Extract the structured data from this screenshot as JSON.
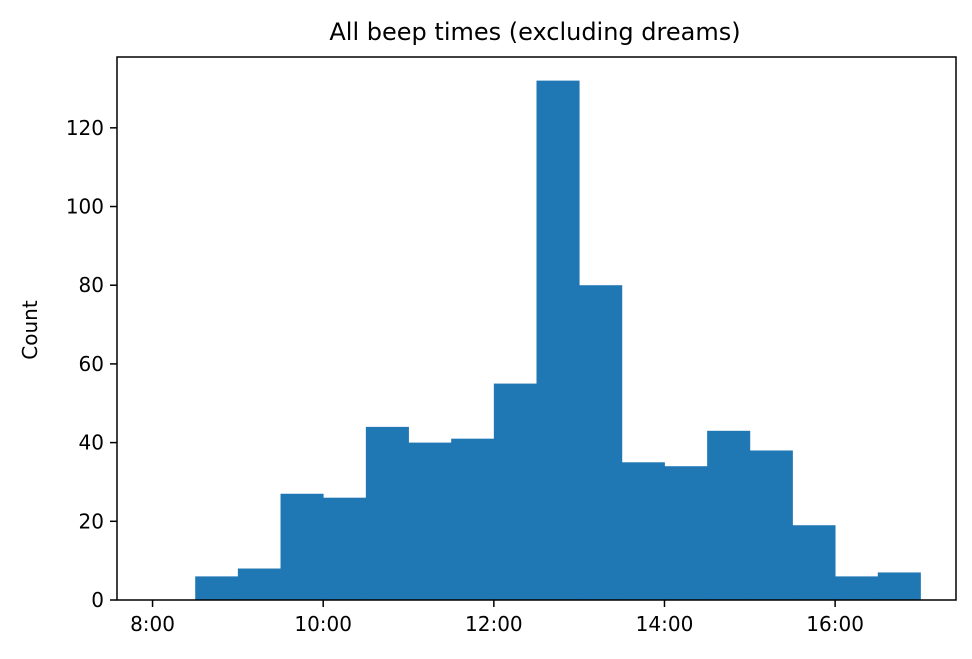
{
  "chart_data": {
    "type": "bar",
    "subtype": "histogram",
    "title": "All beep times (excluding dreams)",
    "xlabel": "",
    "ylabel": "Count",
    "bin_edges": [
      "8:30",
      "9:00",
      "9:30",
      "10:00",
      "10:30",
      "11:00",
      "11:30",
      "12:00",
      "12:30",
      "13:00",
      "13:30",
      "14:00",
      "14:30",
      "15:00",
      "15:30",
      "16:00",
      "16:30",
      "17:00"
    ],
    "values": [
      6,
      8,
      27,
      26,
      44,
      40,
      41,
      55,
      132,
      80,
      35,
      34,
      43,
      38,
      19,
      6,
      7
    ],
    "xlim": [
      "7:35",
      "17:25"
    ],
    "ylim": [
      0,
      138
    ],
    "xticks": [
      "8:00",
      "10:00",
      "12:00",
      "14:00",
      "16:00"
    ],
    "yticks": [
      0,
      20,
      40,
      60,
      80,
      100,
      120
    ],
    "grid": false,
    "legend": "none",
    "colors": {
      "bar": "#1f77b4",
      "axes": "#000000",
      "background": "#ffffff"
    }
  }
}
